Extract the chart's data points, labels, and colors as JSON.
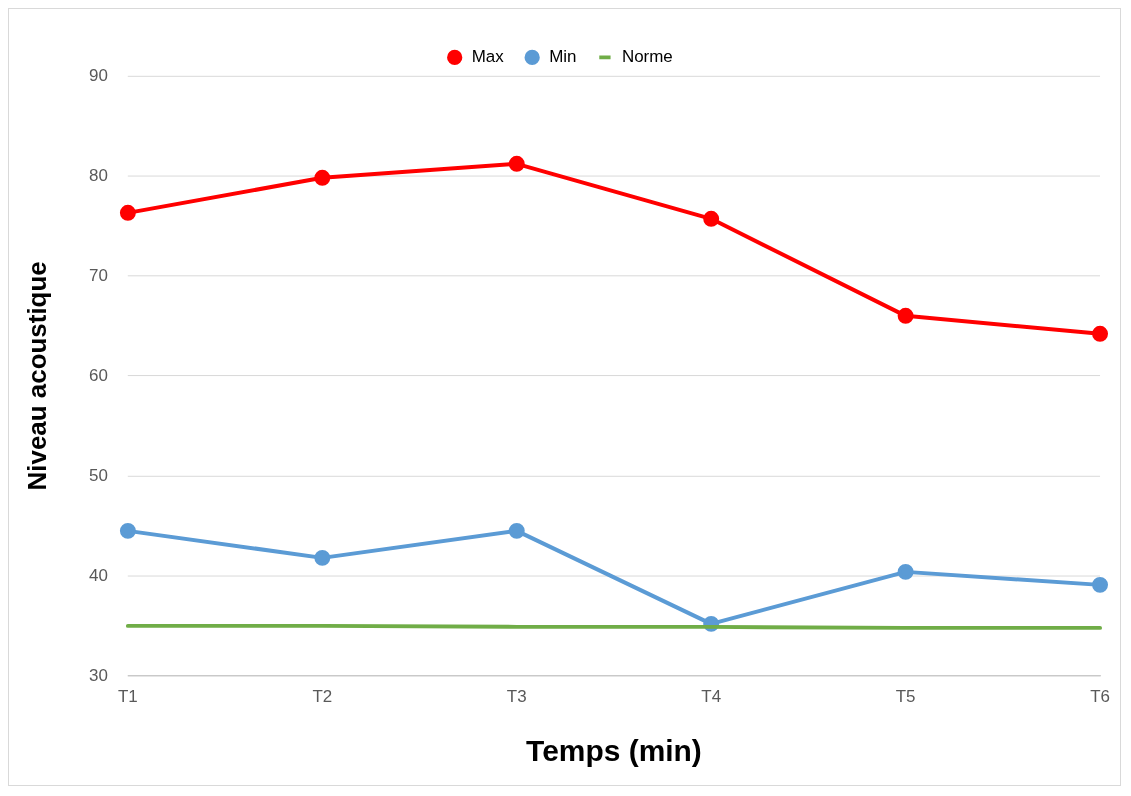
{
  "chart_data": {
    "type": "line",
    "xlabel": "Temps (min)",
    "ylabel": "Niveau acoustique",
    "categories": [
      "T1",
      "T2",
      "T3",
      "T4",
      "T5",
      "T6"
    ],
    "series": [
      {
        "name": "Max",
        "color": "#ff0000",
        "values": [
          76.3,
          79.8,
          81.2,
          75.7,
          66.0,
          64.2
        ],
        "marker": "circle"
      },
      {
        "name": "Min",
        "color": "#5b9bd5",
        "values": [
          44.5,
          41.8,
          44.5,
          35.2,
          40.4,
          39.1
        ],
        "marker": "circle"
      },
      {
        "name": "Norme",
        "color": "#70ad47",
        "values": [
          35,
          35,
          34.9,
          34.9,
          34.8,
          34.8
        ],
        "marker": "none"
      }
    ],
    "ylim": [
      30,
      90
    ],
    "yticks": [
      30,
      40,
      50,
      60,
      70,
      80,
      90
    ],
    "grid": "y",
    "legend": "top",
    "line_style": "solid"
  }
}
